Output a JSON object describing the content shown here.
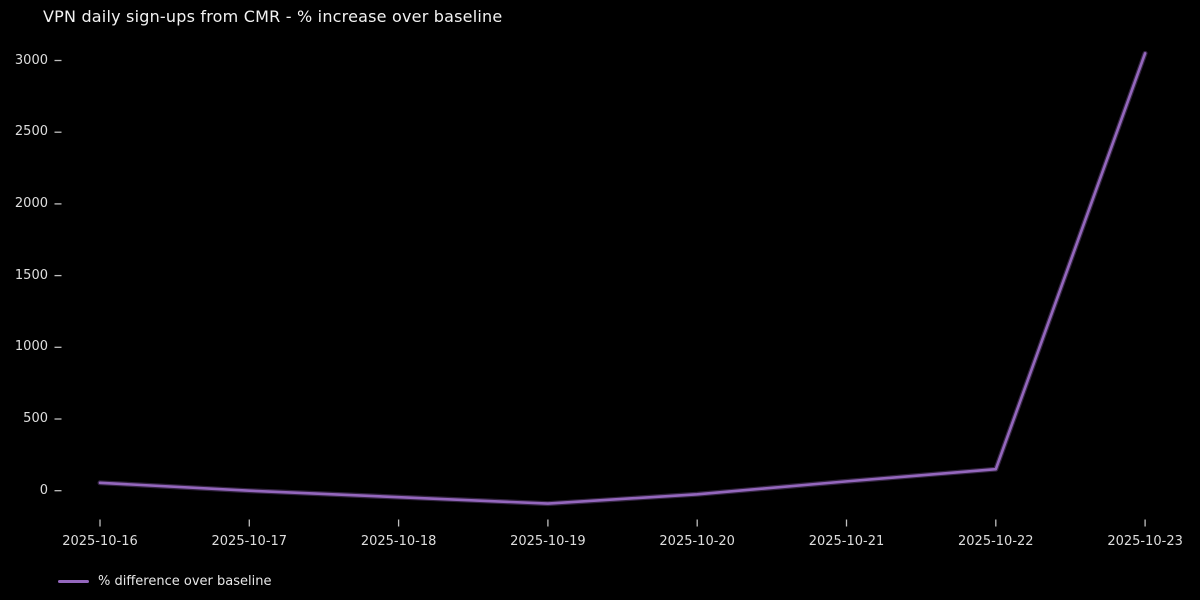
{
  "colors": {
    "background": "#000000",
    "line": "#9467bd",
    "tick": "#c0c0c0",
    "text": "#dedede",
    "title_text": "#f2f2f2"
  },
  "legend": {
    "label": "% difference over baseline"
  },
  "chart_data": {
    "type": "line",
    "title": "VPN daily sign-ups from CMR - % increase over baseline",
    "x": [
      "2025-10-16",
      "2025-10-17",
      "2025-10-18",
      "2025-10-19",
      "2025-10-20",
      "2025-10-21",
      "2025-10-22",
      "2025-10-23"
    ],
    "series": [
      {
        "name": "% difference over baseline",
        "values": [
          55,
          0,
          -45,
          -90,
          -25,
          65,
          150,
          3050
        ]
      }
    ],
    "xlabel": "",
    "ylabel": "",
    "yticks": [
      0,
      500,
      1000,
      1500,
      2000,
      2500,
      3000
    ],
    "ylim": [
      -160,
      3120
    ],
    "grid": false,
    "legend_position": "lower left, below axis"
  }
}
